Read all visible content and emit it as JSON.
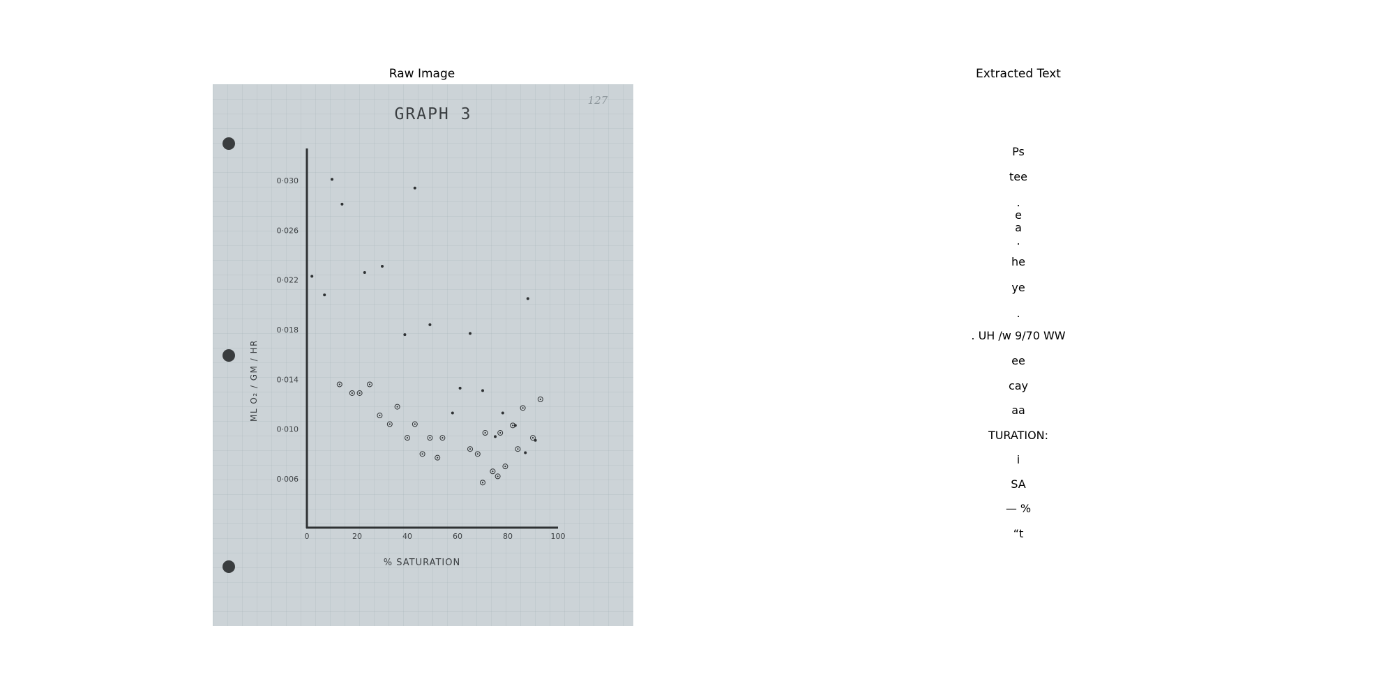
{
  "panels": {
    "left_title": "Raw Image",
    "right_title": "Extracted Text"
  },
  "chart_data": {
    "type": "scatter",
    "title": "GRAPH 3",
    "corner_note": "127",
    "xlabel": "% SATURATION",
    "ylabel": "ML O₂ / GM / HR",
    "xlim": [
      0,
      100
    ],
    "ylim": [
      0.002,
      0.032
    ],
    "xticks": [
      0,
      20,
      40,
      60,
      80,
      100
    ],
    "xtick_labels": [
      "0",
      "20",
      "40",
      "60",
      "80",
      "100"
    ],
    "yticks": [
      0.006,
      0.01,
      0.014,
      0.018,
      0.022,
      0.026,
      0.03
    ],
    "ytick_labels": [
      "0·006",
      "0·010",
      "0·014",
      "0·018",
      "0·022",
      "0·026",
      "0·030"
    ],
    "grid": false,
    "series": [
      {
        "marker": "dot",
        "color": "#2e3133",
        "x": [
          2,
          7,
          10,
          14,
          23,
          30,
          39,
          43,
          49,
          61,
          65,
          70,
          58,
          78,
          88,
          75,
          83,
          87,
          91
        ],
        "y": [
          0.0223,
          0.0208,
          0.0301,
          0.0281,
          0.0226,
          0.0231,
          0.0176,
          0.0294,
          0.0184,
          0.0133,
          0.0177,
          0.0131,
          0.0113,
          0.0113,
          0.0205,
          0.0094,
          0.0103,
          0.0081,
          0.0091
        ]
      },
      {
        "marker": "circled-dot",
        "color": "#2e3133",
        "x": [
          13,
          18,
          21,
          25,
          29,
          33,
          36,
          40,
          43,
          46,
          49,
          52,
          54,
          65,
          68,
          70,
          71,
          74,
          76,
          77,
          79,
          82,
          84,
          86,
          90,
          93
        ],
        "y": [
          0.0136,
          0.0129,
          0.0129,
          0.0136,
          0.0111,
          0.0104,
          0.0118,
          0.0093,
          0.0104,
          0.008,
          0.0093,
          0.0077,
          0.0093,
          0.0084,
          0.008,
          0.0057,
          0.0097,
          0.0066,
          0.0062,
          0.0097,
          0.007,
          0.0103,
          0.0084,
          0.0117,
          0.0093,
          0.0124
        ]
      }
    ]
  },
  "extracted_text": [
    "Ps",
    "tee",
    ".",
    "e",
    "a",
    ".",
    "he",
    "ye",
    ".",
    ". UH /w 9/70 WW",
    "ee",
    "cay",
    "aa",
    "TURATION:",
    "i",
    "SA",
    "— %",
    "“t"
  ]
}
